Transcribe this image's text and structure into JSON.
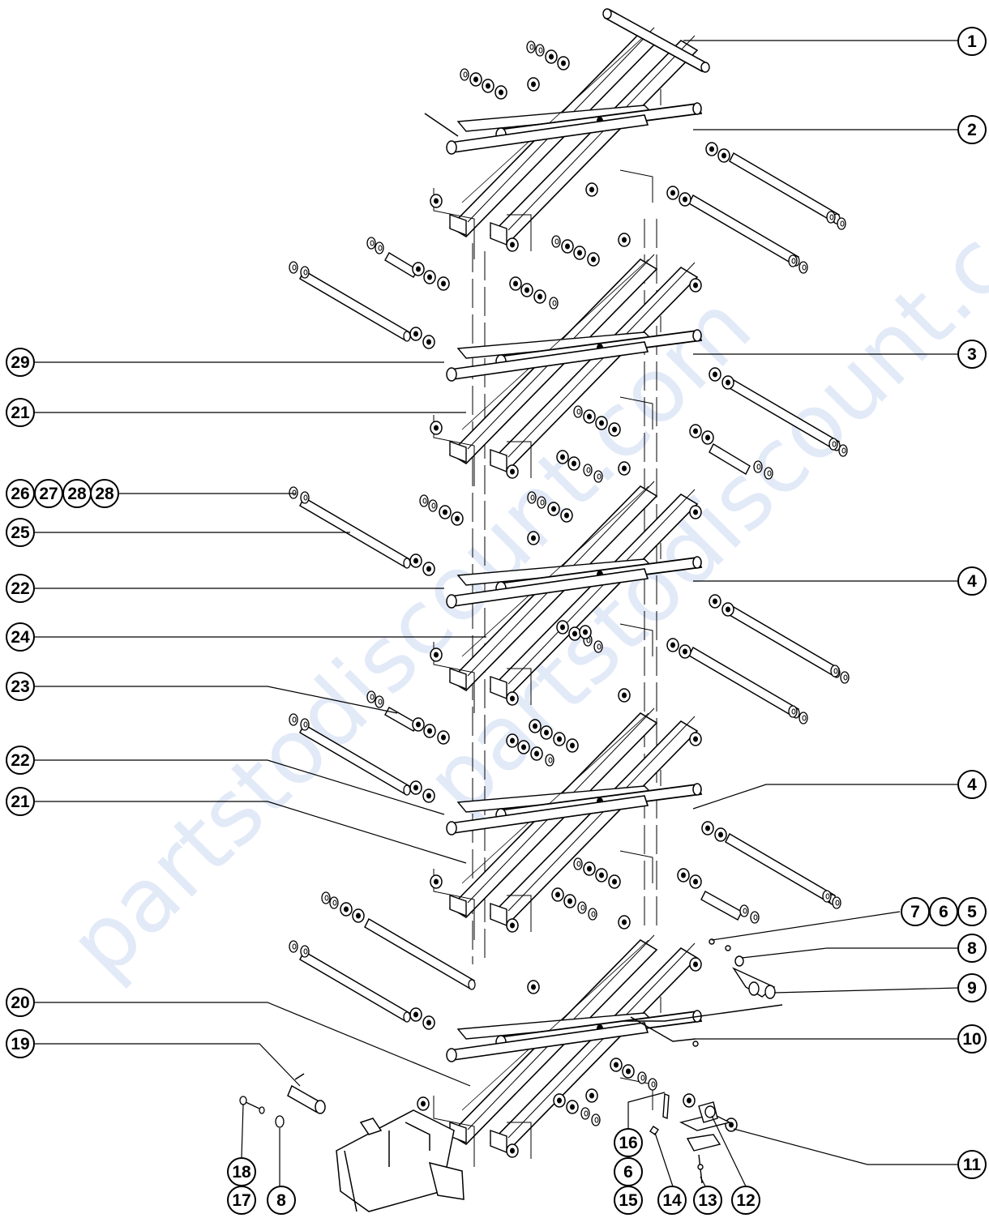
{
  "watermark": "partstodiscount.com",
  "callouts": {
    "c_1": "1",
    "c_2": "2",
    "c_3": "3",
    "c_4a": "4",
    "c_4b": "4",
    "c_5": "5",
    "c_6a": "6",
    "c_7": "7",
    "c_8a": "8",
    "c_9": "9",
    "c_10": "10",
    "c_11": "11",
    "c_12": "12",
    "c_13": "13",
    "c_14": "14",
    "c_15": "15",
    "c_6b": "6",
    "c_16": "16",
    "c_8b": "8",
    "c_17": "17",
    "c_18": "18",
    "c_19": "19",
    "c_20": "20",
    "c_21a": "21",
    "c_22a": "22",
    "c_23": "23",
    "c_24": "24",
    "c_22b": "22",
    "c_25": "25",
    "c_26": "26",
    "c_27": "27",
    "c_28a": "28",
    "c_28b": "28",
    "c_21b": "21",
    "c_29": "29"
  }
}
